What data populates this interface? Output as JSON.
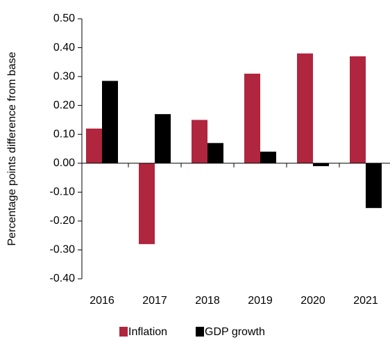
{
  "chart_data": {
    "type": "bar",
    "y_label": "Percentage points difference from base",
    "categories": [
      "2016",
      "2017",
      "2018",
      "2019",
      "2020",
      "2021"
    ],
    "series": [
      {
        "name": "Inflation",
        "color": "#b0263e",
        "values": [
          0.12,
          -0.28,
          0.15,
          0.31,
          0.38,
          0.37
        ]
      },
      {
        "name": "GDP growth",
        "color": "#000000",
        "values": [
          0.285,
          0.17,
          0.07,
          0.04,
          -0.01,
          -0.155
        ]
      }
    ],
    "ylim": [
      -0.4,
      0.5
    ],
    "yticks": [
      {
        "value": -0.4,
        "label": "-0.40"
      },
      {
        "value": -0.3,
        "label": "-0.30"
      },
      {
        "value": -0.2,
        "label": "-0.20"
      },
      {
        "value": -0.1,
        "label": "-0.10"
      },
      {
        "value": 0,
        "label": "0.00"
      },
      {
        "value": 0.1,
        "label": "0.10"
      },
      {
        "value": 0.2,
        "label": "0.20"
      },
      {
        "value": 0.3,
        "label": "0.30"
      },
      {
        "value": 0.4,
        "label": "0.40"
      },
      {
        "value": 0.5,
        "label": "0.50"
      }
    ],
    "legend": "bottom"
  }
}
